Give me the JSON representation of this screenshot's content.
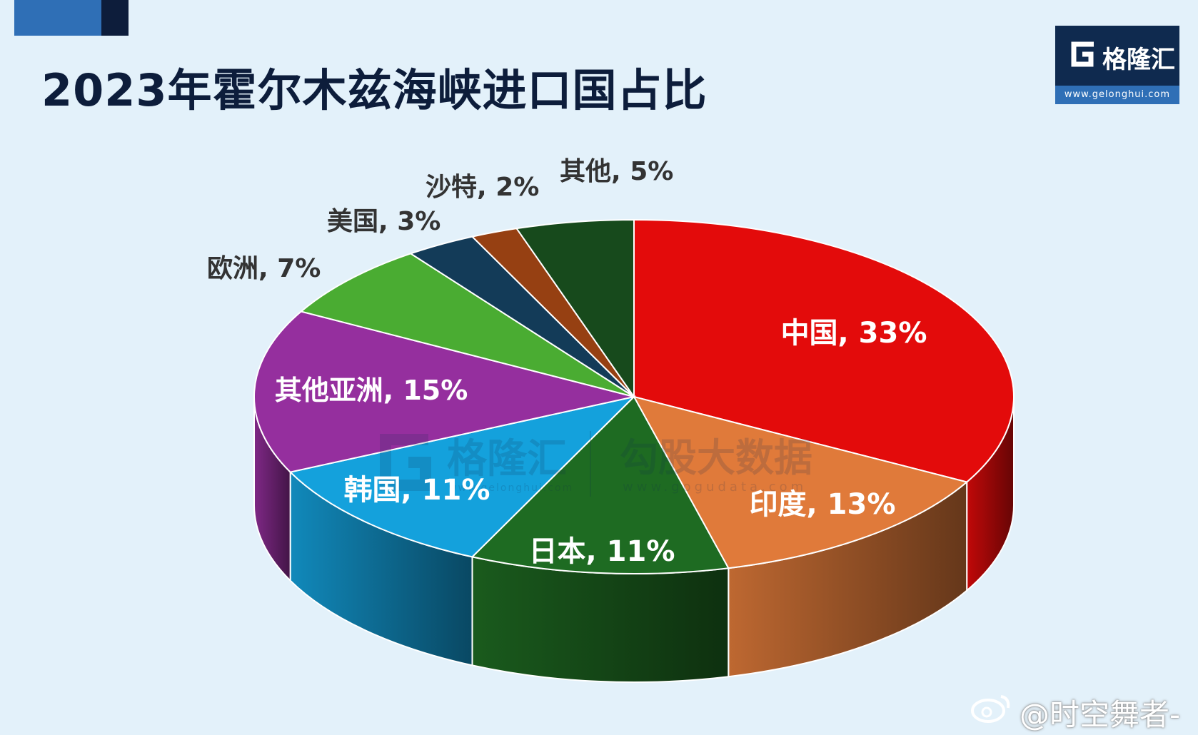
{
  "header": {
    "title": "2023年霍尔木兹海峡进口国占比"
  },
  "logo": {
    "name": "格隆汇",
    "url": "www.gelonghui.com"
  },
  "watermark": {
    "brand1": "格隆汇",
    "brand1_url": "www.gelonghui.com",
    "brand2": "勾股大数据",
    "brand2_url": "www.gogudata.com"
  },
  "footer": {
    "weibo_handle": "@时空舞者-"
  },
  "colors": {
    "background": "#e3f1fa",
    "title": "#0d1d3b",
    "china": "#e30b0b",
    "india": "#e07a3a",
    "japan": "#1e6b22",
    "korea": "#14a1dc",
    "other_asia": "#952f9e",
    "europe": "#4aac32",
    "usa": "#133b58",
    "saudi": "#964012",
    "other": "#174a1c"
  },
  "chart_data": {
    "type": "pie",
    "title": "2023年霍尔木兹海峡进口国占比",
    "style": "3d-pie",
    "series": [
      {
        "name": "",
        "slices": [
          {
            "label": "中国, 33%",
            "category": "中国",
            "value": 33,
            "color": "#e30b0b",
            "text_color": "#ffffff"
          },
          {
            "label": "印度, 13%",
            "category": "印度",
            "value": 13,
            "color": "#e07a3a",
            "text_color": "#ffffff"
          },
          {
            "label": "日本, 11%",
            "category": "日本",
            "value": 11,
            "color": "#1e6b22",
            "text_color": "#ffffff"
          },
          {
            "label": "韩国, 11%",
            "category": "韩国",
            "value": 11,
            "color": "#14a1dc",
            "text_color": "#ffffff"
          },
          {
            "label": "其他亚洲, 15%",
            "category": "其他亚洲",
            "value": 15,
            "color": "#952f9e",
            "text_color": "#ffffff"
          },
          {
            "label": "欧洲, 7%",
            "category": "欧洲",
            "value": 7,
            "color": "#4aac32",
            "text_color": "#333333"
          },
          {
            "label": "美国, 3%",
            "category": "美国",
            "value": 3,
            "color": "#133b58",
            "text_color": "#333333"
          },
          {
            "label": "沙特, 2%",
            "category": "沙特",
            "value": 2,
            "color": "#964012",
            "text_color": "#333333"
          },
          {
            "label": "其他, 5%",
            "category": "其他",
            "value": 5,
            "color": "#174a1c",
            "text_color": "#333333"
          }
        ]
      }
    ]
  }
}
